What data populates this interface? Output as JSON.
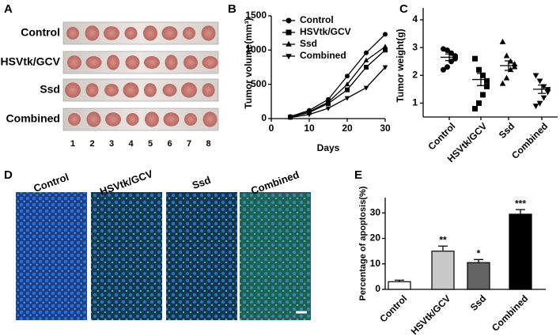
{
  "panels": {
    "letters": [
      "A",
      "B",
      "C",
      "D",
      "E"
    ],
    "photo_rows": [
      "Control",
      "HSVtk/GCV",
      "Ssd",
      "Combined"
    ],
    "photo_columns": [
      "1",
      "2",
      "3",
      "4",
      "5",
      "6",
      "7",
      "8"
    ],
    "image_labels": [
      "Control",
      "HSVtk/GCV",
      "Ssd",
      "Combined"
    ]
  },
  "chart_data": [
    {
      "type": "line",
      "xlabel": "Days",
      "ylabel": "Tumor volume(mm³)",
      "x": [
        5,
        10,
        15,
        20,
        25,
        30
      ],
      "xlim": [
        0,
        30
      ],
      "xticks": [
        0,
        10,
        20,
        30
      ],
      "ylim": [
        0,
        1500
      ],
      "yticks": [
        0,
        500,
        1000,
        1500
      ],
      "legend": "upper left",
      "series": [
        {
          "name": "Control",
          "color": "#000000",
          "marker": "circle",
          "values": [
            30,
            120,
            280,
            620,
            960,
            1230
          ]
        },
        {
          "name": "HSVtk/GCV",
          "color": "#000000",
          "marker": "square",
          "values": [
            20,
            90,
            220,
            420,
            750,
            1000
          ]
        },
        {
          "name": "Ssd",
          "color": "#000000",
          "marker": "triangle",
          "values": [
            25,
            100,
            240,
            500,
            850,
            1050
          ]
        },
        {
          "name": "Combined",
          "color": "#000000",
          "marker": "triangle-down",
          "values": [
            15,
            60,
            150,
            300,
            450,
            750
          ]
        }
      ]
    },
    {
      "type": "strip",
      "ylabel": "Tumor weight(g)",
      "categories": [
        "Control",
        "HSVtk/GCV",
        "Ssd",
        "Combined"
      ],
      "markers": [
        "circle",
        "square",
        "triangle",
        "triangle-down"
      ],
      "ylim": [
        0.5,
        4.2
      ],
      "yticks": [
        1,
        2,
        3,
        4
      ],
      "values": [
        [
          2.95,
          2.9,
          2.8,
          2.7,
          2.6,
          2.5,
          2.3,
          2.2
        ],
        [
          2.6,
          2.2,
          2.0,
          1.8,
          1.6,
          1.3,
          1.0,
          0.8
        ],
        [
          3.2,
          2.7,
          2.5,
          2.4,
          2.3,
          2.2,
          1.9,
          1.7
        ],
        [
          2.0,
          1.8,
          1.6,
          1.5,
          1.4,
          1.2,
          1.0,
          0.9
        ]
      ],
      "means": [
        2.65,
        1.85,
        2.35,
        1.5
      ],
      "errors": [
        0.12,
        0.22,
        0.17,
        0.15
      ]
    },
    {
      "type": "bar",
      "ylabel": "Percentage of apoptosis(%)",
      "categories": [
        "Control",
        "HSVtk/GCV",
        "Ssd",
        "Combined"
      ],
      "values": [
        3,
        15,
        10.5,
        29.5
      ],
      "errors": [
        0.6,
        2,
        1.2,
        1.8
      ],
      "colors": [
        "#ffffff",
        "#c8c8c8",
        "#646464",
        "#000000"
      ],
      "annotations": [
        null,
        "**",
        "*",
        "***"
      ],
      "ylim": [
        0,
        36
      ],
      "yticks": [
        0,
        10,
        20,
        30
      ]
    }
  ]
}
